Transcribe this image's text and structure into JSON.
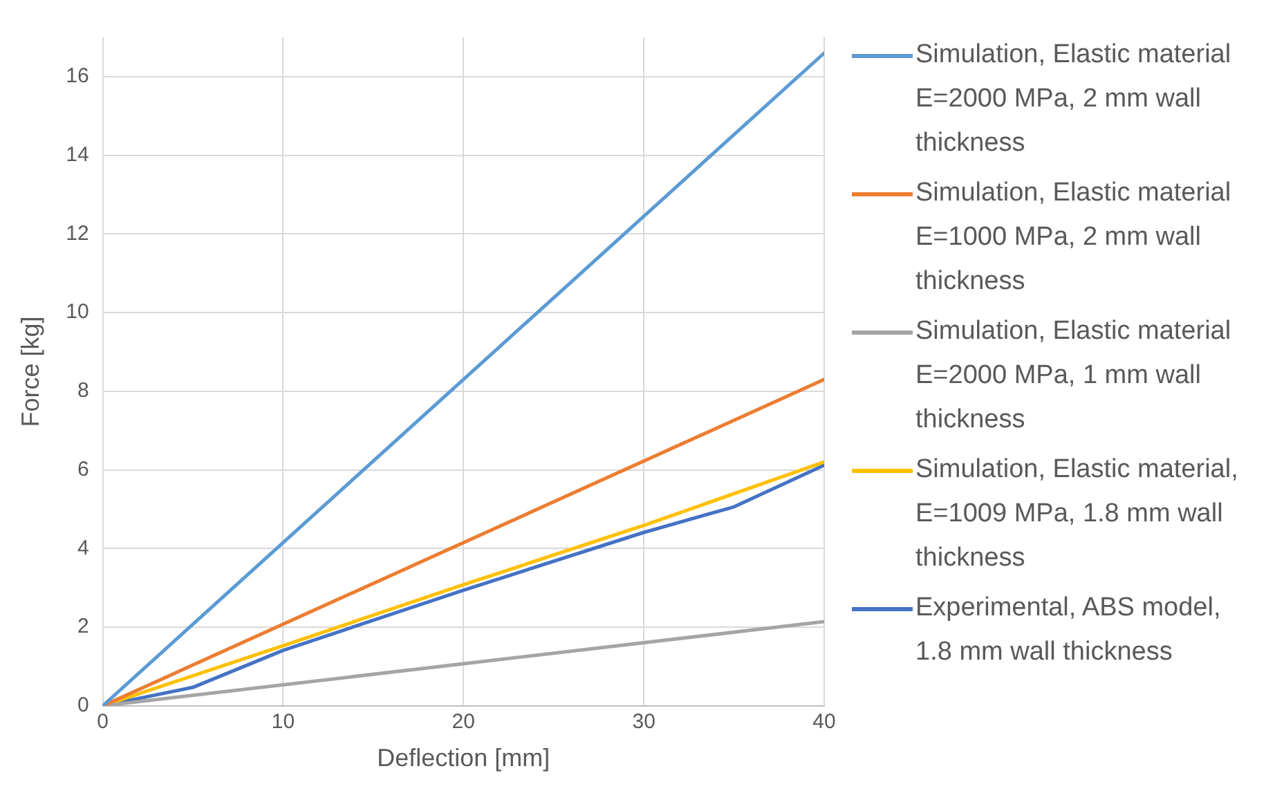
{
  "chart_data": {
    "type": "line",
    "xlabel": "Deflection [mm]",
    "ylabel": "Force [kg]",
    "x": [
      0,
      40
    ],
    "xlim": [
      0,
      40
    ],
    "xticks": [
      0,
      10,
      20,
      30,
      40
    ],
    "ylim": [
      0,
      17
    ],
    "yticks": [
      0,
      2,
      4,
      6,
      8,
      10,
      12,
      14,
      16
    ],
    "grid": true,
    "legend": "right",
    "marker": "none",
    "line_style": "solid",
    "series": [
      {
        "name": "Simulation, Elastic material E=2000 MPa, 2 mm wall thickness",
        "color": "#5b9bd5",
        "values": [
          0,
          16.6
        ]
      },
      {
        "name": "Simulation, Elastic material E=1000 MPa, 2 mm wall thickness",
        "color": "#ed7d31",
        "values": [
          0,
          8.3
        ]
      },
      {
        "name": "Simulation, Elastic material E=2000 MPa, 1 mm wall thickness",
        "color": "#a5a5a5",
        "values": [
          0,
          2.14
        ]
      },
      {
        "name": "Simulation, Elastic material, E=1009 MPa, 1.8 mm wall thickness",
        "color": "#ffc000",
        "x": [
          0,
          10,
          20,
          30,
          40
        ],
        "values": [
          0,
          1.53,
          3.08,
          4.59,
          6.2
        ]
      },
      {
        "name": "Experimental, ABS model, 1.8 mm wall thickness",
        "color": "#4472c4",
        "x": [
          0,
          5,
          10,
          20,
          30,
          35,
          40
        ],
        "values": [
          0,
          0.47,
          1.41,
          2.94,
          4.41,
          5.06,
          6.12
        ]
      }
    ]
  }
}
